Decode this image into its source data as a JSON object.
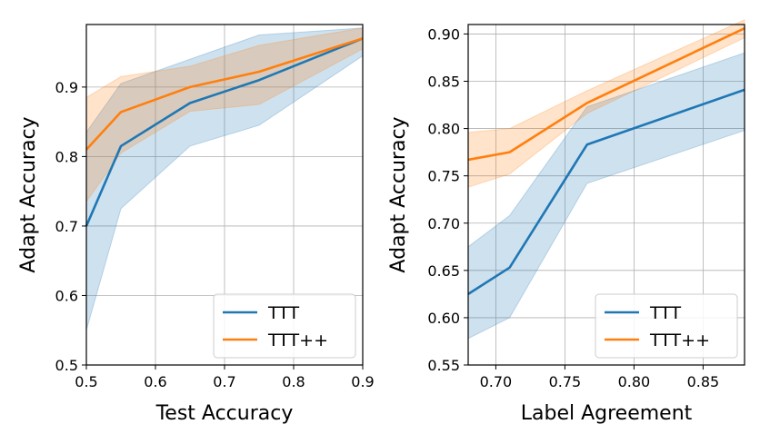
{
  "chart_data": [
    {
      "type": "line",
      "xlabel": "Test Accuracy",
      "ylabel": "Adapt Accuracy",
      "xlim": [
        0.5,
        0.9
      ],
      "ylim": [
        0.5,
        0.99
      ],
      "xticks": [
        0.5,
        0.6,
        0.7,
        0.8,
        0.9
      ],
      "xtick_labels": [
        "0.5",
        "0.6",
        "0.7",
        "0.8",
        "0.9"
      ],
      "yticks": [
        0.5,
        0.6,
        0.7,
        0.8,
        0.9
      ],
      "ytick_labels": [
        "0.5",
        "0.6",
        "0.7",
        "0.8",
        "0.9"
      ],
      "grid": true,
      "legend_position": "bottom-right",
      "series": [
        {
          "name": "TTT",
          "color": "#1f77b4",
          "x": [
            0.5,
            0.55,
            0.65,
            0.75,
            0.9
          ],
          "y": [
            0.7,
            0.815,
            0.877,
            0.91,
            0.97
          ],
          "y_low": [
            0.55,
            0.725,
            0.815,
            0.845,
            0.945
          ],
          "y_high": [
            0.835,
            0.905,
            0.94,
            0.975,
            0.985
          ]
        },
        {
          "name": "TTT++",
          "color": "#ff7f0e",
          "x": [
            0.5,
            0.55,
            0.65,
            0.75,
            0.9
          ],
          "y": [
            0.81,
            0.864,
            0.9,
            0.922,
            0.97
          ],
          "y_low": [
            0.735,
            0.805,
            0.865,
            0.875,
            0.955
          ],
          "y_high": [
            0.885,
            0.915,
            0.93,
            0.96,
            0.985
          ]
        }
      ]
    },
    {
      "type": "line",
      "xlabel": "Label Agreement",
      "ylabel": "Adapt Accuracy",
      "xlim": [
        0.68,
        0.88
      ],
      "ylim": [
        0.55,
        0.91
      ],
      "xticks": [
        0.7,
        0.75,
        0.8,
        0.85
      ],
      "xtick_labels": [
        "0.70",
        "0.75",
        "0.80",
        "0.85"
      ],
      "yticks": [
        0.55,
        0.6,
        0.65,
        0.7,
        0.75,
        0.8,
        0.85,
        0.9
      ],
      "ytick_labels": [
        "0.55",
        "0.60",
        "0.65",
        "0.70",
        "0.75",
        "0.80",
        "0.85",
        "0.90"
      ],
      "grid": true,
      "legend_position": "bottom-right",
      "series": [
        {
          "name": "TTT",
          "color": "#1f77b4",
          "x": [
            0.68,
            0.71,
            0.766,
            0.88
          ],
          "y": [
            0.625,
            0.653,
            0.783,
            0.841
          ],
          "y_low": [
            0.578,
            0.6,
            0.742,
            0.798
          ],
          "y_high": [
            0.675,
            0.708,
            0.823,
            0.88
          ]
        },
        {
          "name": "TTT++",
          "color": "#ff7f0e",
          "x": [
            0.68,
            0.71,
            0.766,
            0.88
          ],
          "y": [
            0.767,
            0.775,
            0.827,
            0.906
          ],
          "y_low": [
            0.738,
            0.752,
            0.816,
            0.896
          ],
          "y_high": [
            0.796,
            0.8,
            0.84,
            0.915
          ]
        }
      ]
    }
  ]
}
